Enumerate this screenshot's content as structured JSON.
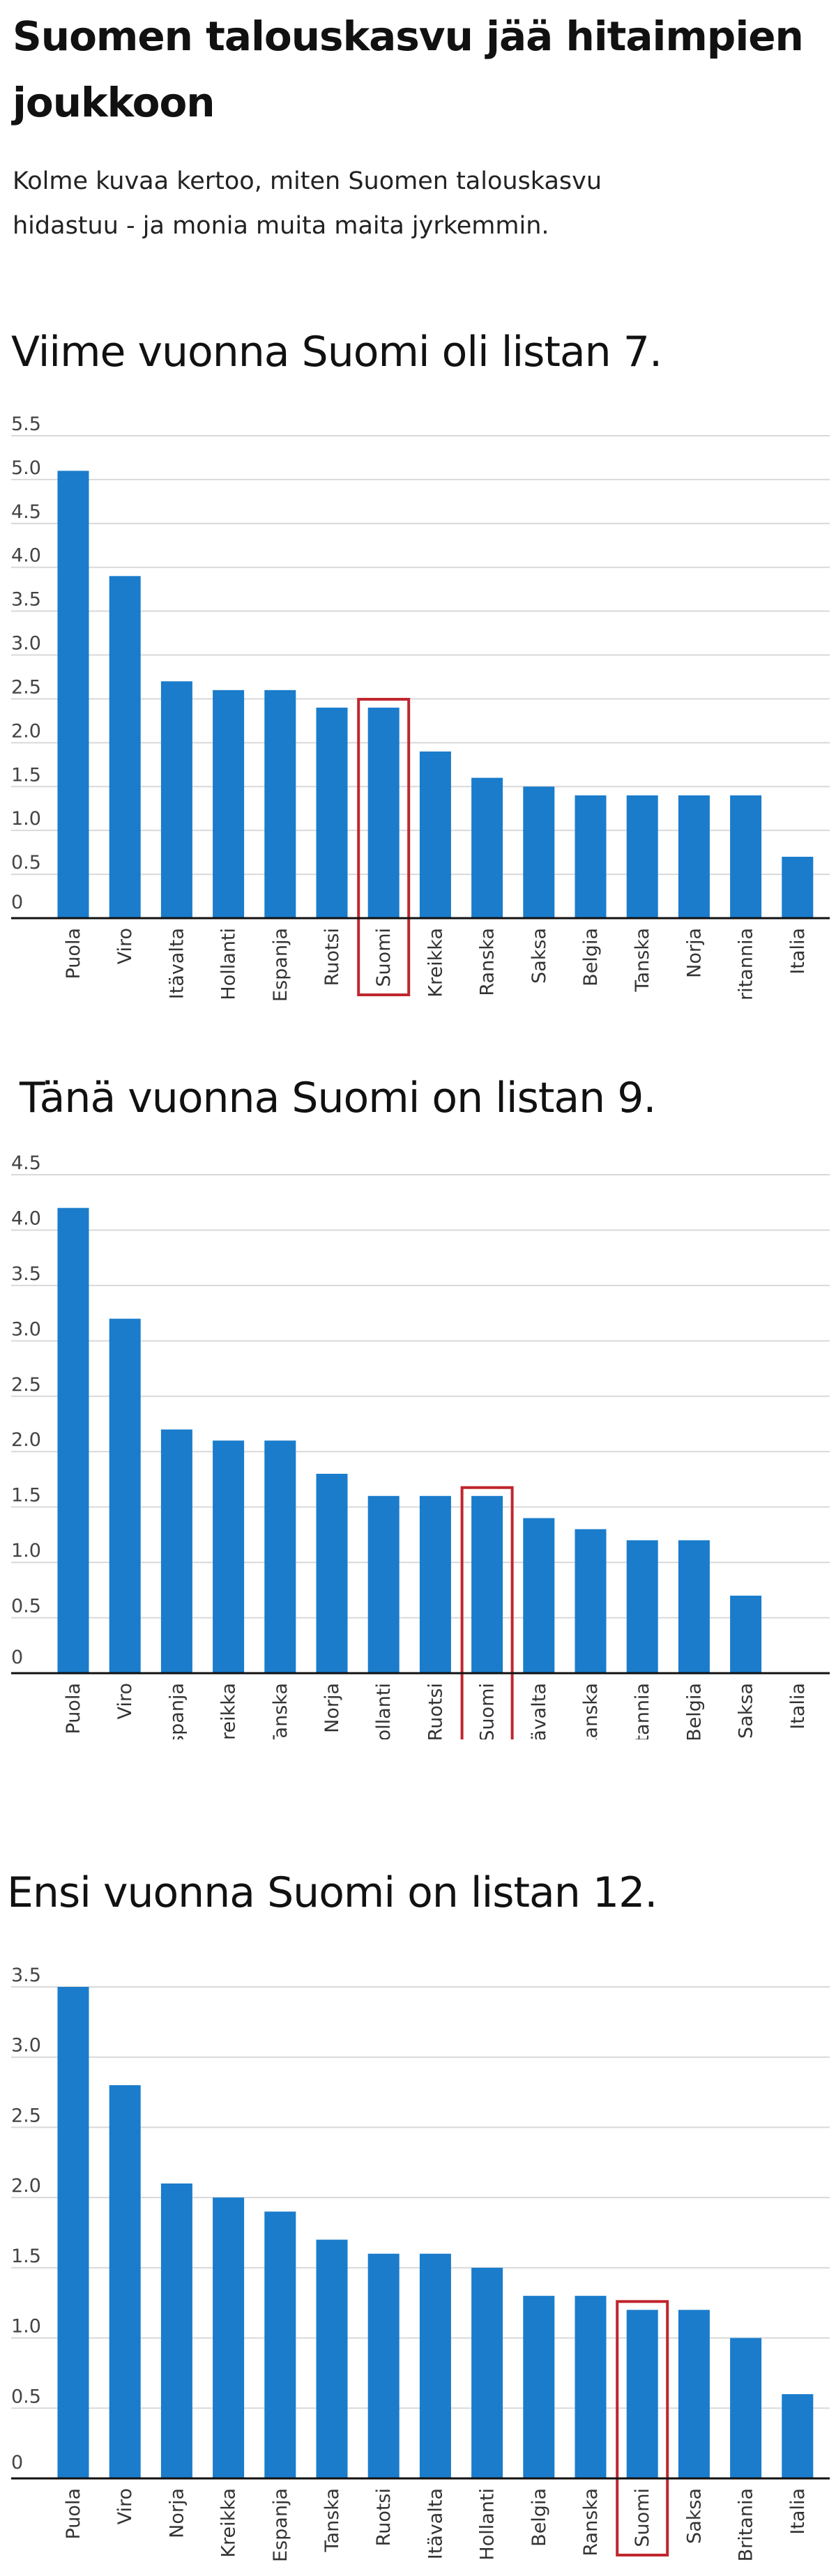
{
  "header": {
    "title": "Suomen talouskasvu jää hitaimpien joukkoon",
    "subtitle": "Kolme kuvaa kertoo, miten Suomen talouskasvu hidastuu - ja monia muita maita jyrkemmin."
  },
  "colors": {
    "bar": "#1a7ccb",
    "highlight": "#c0262e",
    "grid": "#d9d9d9",
    "axis": "#111111"
  },
  "chart_data": [
    {
      "type": "bar",
      "title": "Viime vuonna Suomi oli listan 7.",
      "categories": [
        "Puola",
        "Viro",
        "Itävalta",
        "Hollanti",
        "Espanja",
        "Ruotsi",
        "Suomi",
        "Kreikka",
        "Ranska",
        "Saksa",
        "Belgia",
        "Tanska",
        "Norja",
        "Britannia",
        "Italia"
      ],
      "values": [
        5.1,
        3.9,
        2.7,
        2.6,
        2.6,
        2.4,
        2.4,
        1.9,
        1.6,
        1.5,
        1.4,
        1.4,
        1.4,
        1.4,
        0.7
      ],
      "highlight": "Suomi",
      "yticks": [
        "0",
        "0.5",
        "1.0",
        "1.5",
        "2.0",
        "2.5",
        "3.0",
        "3.5",
        "4.0",
        "4.5",
        "5.0",
        "5.5"
      ],
      "ylim": [
        0,
        5.5
      ],
      "grid": true
    },
    {
      "type": "bar",
      "title": "Tänä vuonna Suomi on listan 9.",
      "categories": [
        "Puola",
        "Viro",
        "Espanja",
        "Kreikka",
        "Tanska",
        "Norja",
        "Hollanti",
        "Ruotsi",
        "Suomi",
        "Itävalta",
        "Ranska",
        "Britannia",
        "Belgia",
        "Saksa",
        "Italia"
      ],
      "values": [
        4.2,
        3.2,
        2.2,
        2.1,
        2.1,
        1.8,
        1.6,
        1.6,
        1.6,
        1.4,
        1.3,
        1.2,
        1.2,
        0.7,
        0
      ],
      "highlight": "Suomi",
      "yticks": [
        "0",
        "0.5",
        "1.0",
        "1.5",
        "2.0",
        "2.5",
        "3.0",
        "3.5",
        "4.0",
        "4.5"
      ],
      "ylim": [
        0,
        4.5
      ],
      "grid": true
    },
    {
      "type": "bar",
      "title": "Ensi vuonna Suomi on listan 12.",
      "categories": [
        "Puola",
        "Viro",
        "Norja",
        "Kreikka",
        "Espanja",
        "Tanska",
        "Ruotsi",
        "Itävalta",
        "Hollanti",
        "Belgia",
        "Ranska",
        "Suomi",
        "Saksa",
        "Britania",
        "Italia"
      ],
      "values": [
        3.5,
        2.8,
        2.1,
        2.0,
        1.9,
        1.7,
        1.6,
        1.6,
        1.5,
        1.3,
        1.3,
        1.2,
        1.2,
        1.0,
        0.6
      ],
      "highlight": "Suomi",
      "yticks": [
        "0",
        "0.5",
        "1.0",
        "1.5",
        "2.0",
        "2.5",
        "3.0",
        "3.5"
      ],
      "ylim": [
        0,
        3.5
      ],
      "grid": true
    }
  ]
}
